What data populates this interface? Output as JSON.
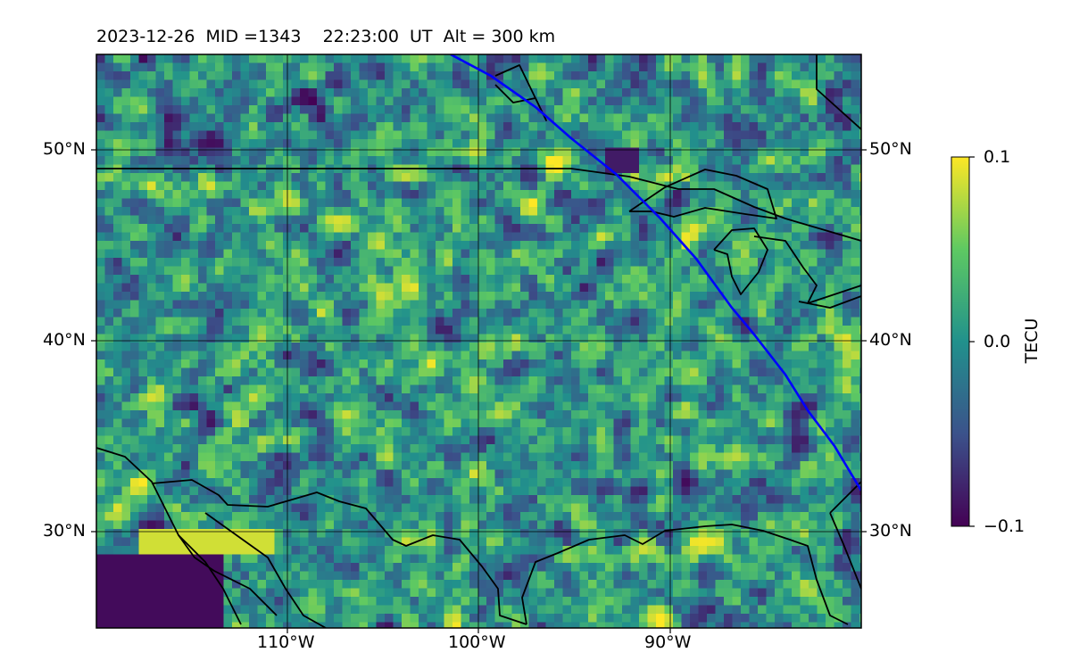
{
  "title": "2023-12-26  MID =1343    22:23:00  UT  Alt = 300 km",
  "lat_labels": [
    "50°N",
    "40°N",
    "30°N"
  ],
  "lon_labels": [
    "110°W",
    "100°W",
    "90°W"
  ],
  "colorbar": {
    "label": "TECU",
    "max_label": "0.1",
    "mid_label": "0.0",
    "min_label": "−0.1",
    "colormap": "viridis",
    "colors": [
      "#440154",
      "#3b528b",
      "#21918c",
      "#5ec962",
      "#fde725"
    ]
  },
  "map": {
    "lon_range": [
      -120,
      -80
    ],
    "lat_range": [
      25,
      55
    ],
    "projection": "equirectangular",
    "grid": true,
    "terminator_color": "#0000ff",
    "coastline_color": "#000000"
  }
}
